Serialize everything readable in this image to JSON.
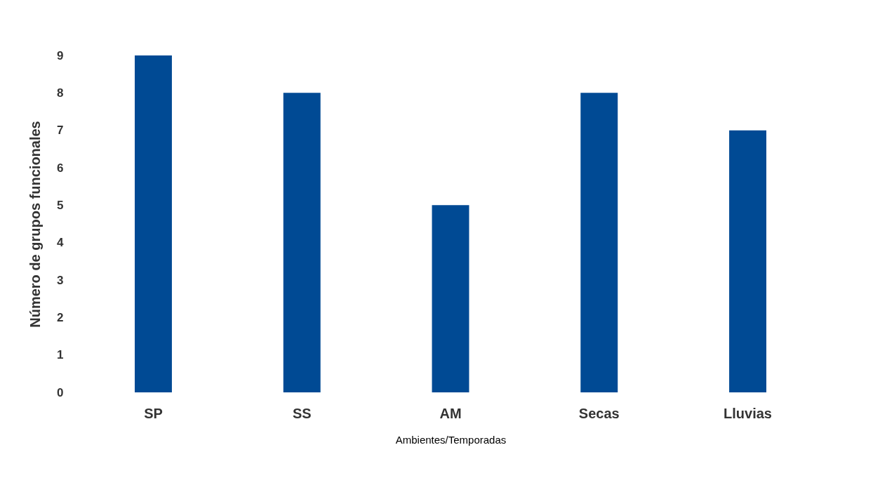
{
  "chart_data": {
    "type": "bar",
    "xlabel": "Ambientes/Temporadas",
    "ylabel": "Número de grupos funcionales",
    "categories": [
      "SP",
      "SS",
      "AM",
      "Secas",
      "Lluvias"
    ],
    "values": [
      9,
      8,
      5,
      8,
      7
    ],
    "color": "#004a94",
    "ylim": [
      0,
      9
    ],
    "yticks": [
      0,
      1,
      2,
      3,
      4,
      5,
      6,
      7,
      8,
      9
    ],
    "grid": false
  }
}
